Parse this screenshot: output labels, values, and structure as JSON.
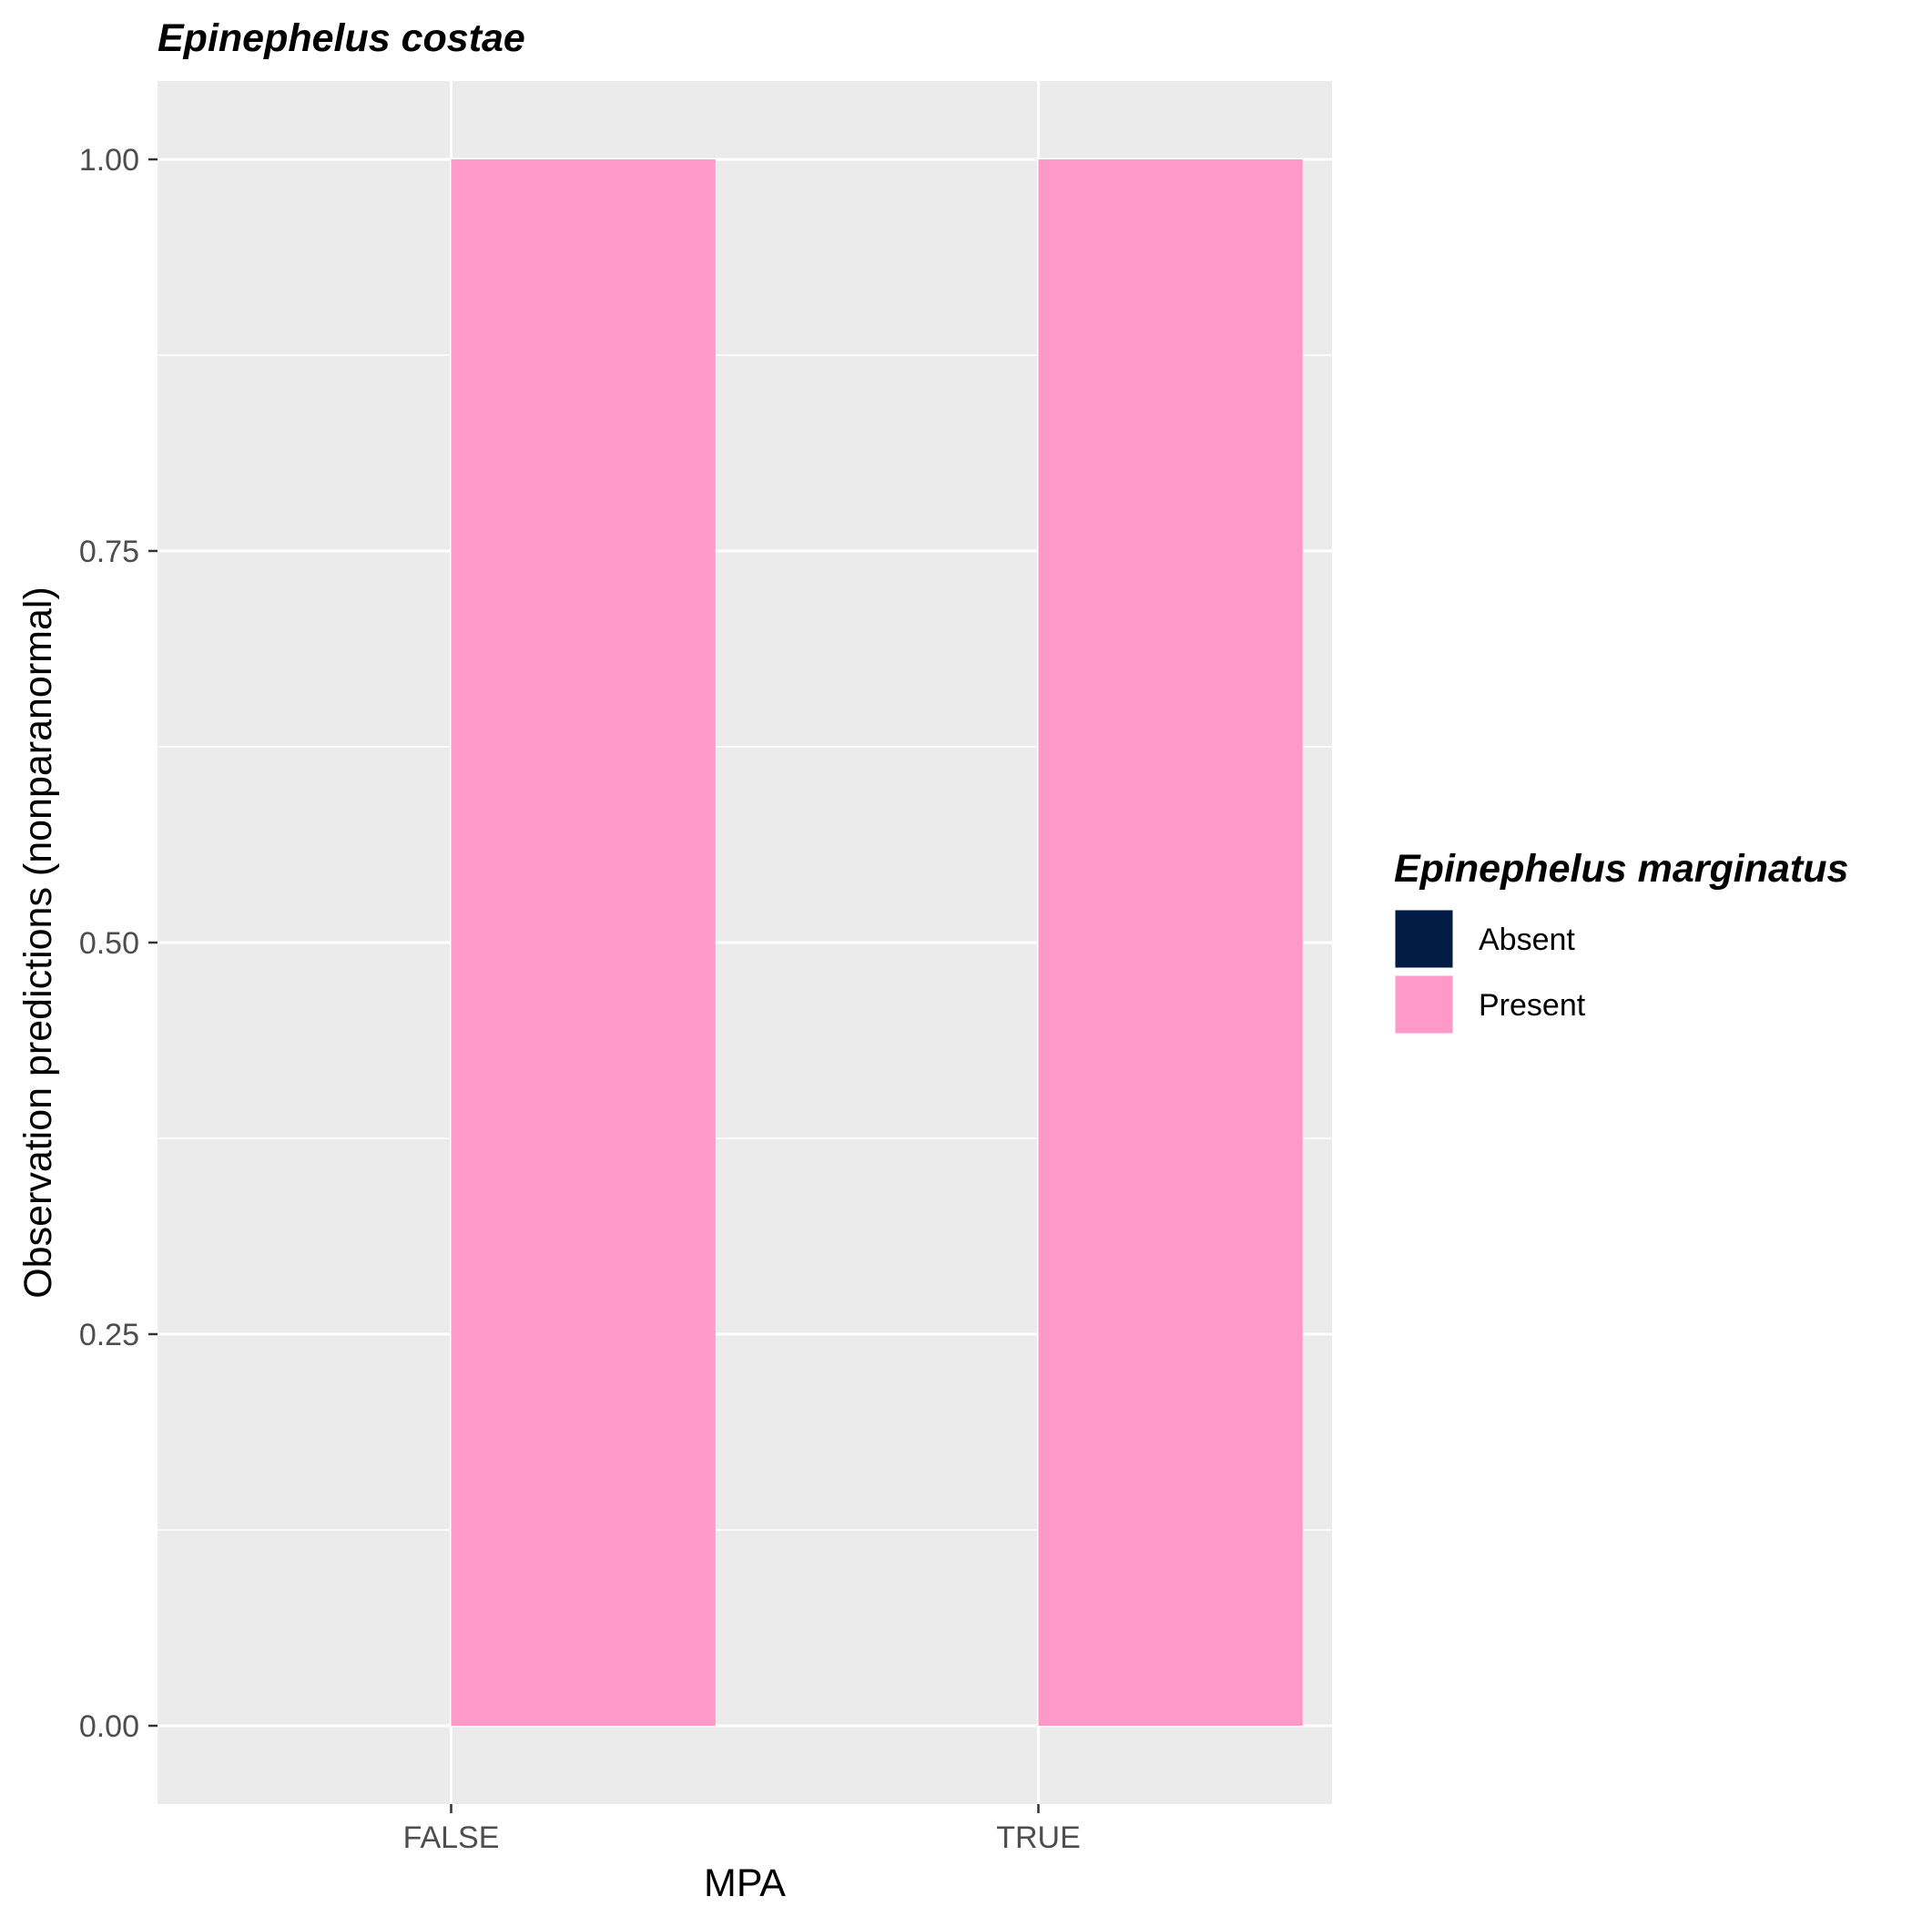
{
  "chart_data": {
    "type": "bar",
    "title": "Epinephelus costae",
    "xlabel": "MPA",
    "ylabel": "Observation predictions (nonparanormal)",
    "categories": [
      "FALSE",
      "TRUE"
    ],
    "series": [
      {
        "name": "Absent",
        "color": "#001C45",
        "values": [
          0,
          0
        ]
      },
      {
        "name": "Present",
        "color": "#FF99C8",
        "values": [
          1.0,
          1.0
        ]
      }
    ],
    "ylim": [
      -0.05,
      1.05
    ],
    "yticks": [
      0.0,
      0.25,
      0.5,
      0.75,
      1.0
    ],
    "ytick_labels": [
      "0.00",
      "0.25",
      "0.50",
      "0.75",
      "1.00"
    ],
    "grid": true,
    "panel_background": "#EBEBEB",
    "legend": {
      "title": "Epinephelus marginatus",
      "placement": "right",
      "entries": [
        "Absent",
        "Present"
      ]
    }
  }
}
